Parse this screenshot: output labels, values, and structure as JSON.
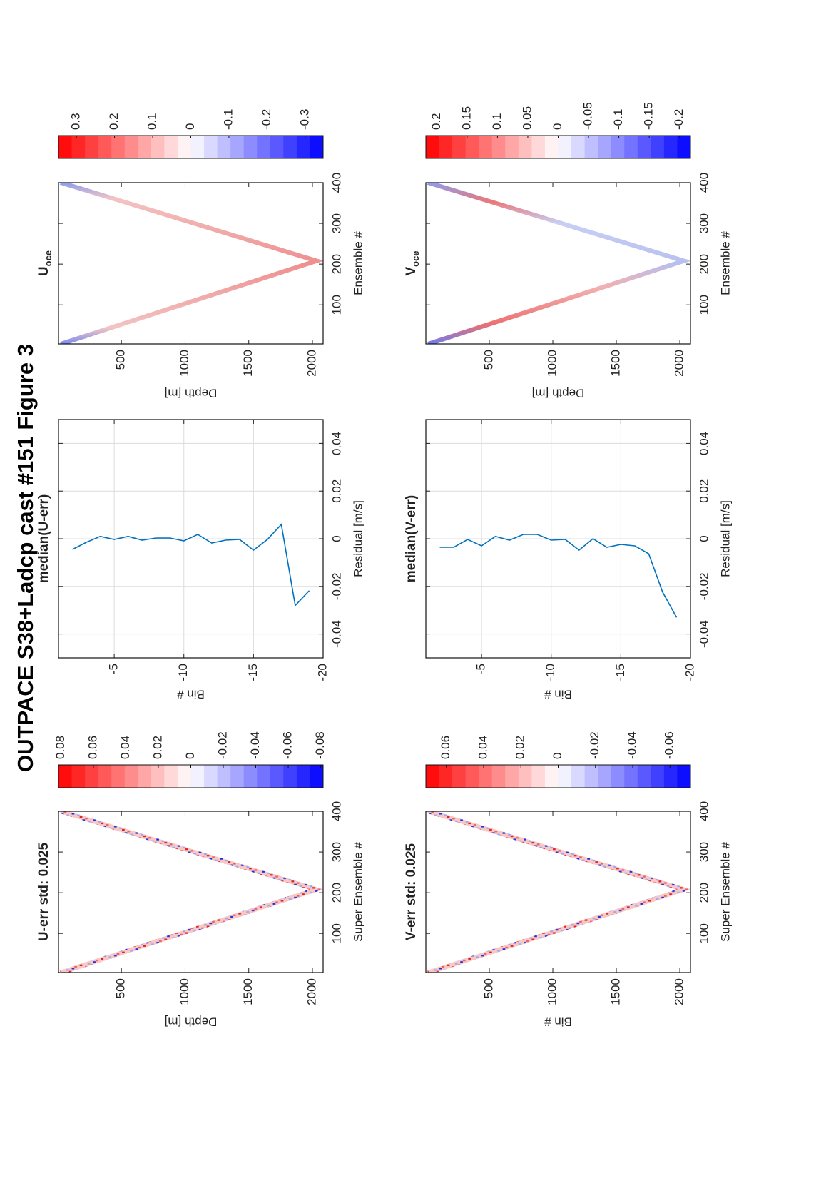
{
  "figure": {
    "title": "OUTPACE S38+Ladcp cast #151  Figure 3"
  },
  "chart_data": [
    {
      "type": "heatmap",
      "title": "U-err std: 0.025",
      "xlabel": "Super Ensemble #",
      "ylabel": "Depth [m]",
      "xlim": [
        4,
        400
      ],
      "xticks": [
        100,
        200,
        300,
        400
      ],
      "ylim": [
        6,
        2084
      ],
      "yticks": [
        500,
        1000,
        1500,
        2000
      ],
      "y_inverted": true,
      "colormap": [
        "#ff0000",
        "#ffffff",
        "#0000ff"
      ],
      "colorbar": {
        "clim": [
          -0.0815,
          0.0815
        ],
        "ticks": [
          0.08,
          0.06,
          0.04,
          0.02,
          0,
          -0.02,
          -0.04,
          -0.06,
          -0.08
        ]
      }
    },
    {
      "type": "line",
      "title": "median(U-err)",
      "xlabel": "Residual [m/s]",
      "ylabel": "Bin #",
      "xlim": [
        -0.05,
        0.05
      ],
      "xticks": [
        -0.04,
        -0.02,
        0,
        0.02,
        0.04
      ],
      "ylim": [
        -20,
        -1
      ],
      "yticks": [
        -20,
        -15,
        -10,
        -5
      ],
      "grid": true,
      "series": [
        {
          "color": "#0072bd",
          "bins": [
            -2,
            -3,
            -4,
            -5,
            -6,
            -7,
            -8,
            -9,
            -10,
            -11,
            -12,
            -13,
            -14,
            -15,
            -16,
            -17,
            -18,
            -19
          ],
          "values": [
            -0.0045,
            -0.0015,
            0.001,
            -0.0003,
            0.001,
            -0.0006,
            0.0003,
            0.0003,
            -0.0009,
            0.0018,
            -0.0018,
            -0.0006,
            -0.0003,
            -0.0048,
            -0.0003,
            0.006,
            -0.028,
            -0.0218
          ]
        }
      ]
    },
    {
      "type": "heatmap",
      "title": {
        "main": "U",
        "sub": "oce"
      },
      "xlabel": "Ensemble #",
      "ylabel": "Depth [m]",
      "xlim": [
        4,
        400
      ],
      "xticks": [
        100,
        200,
        300,
        400
      ],
      "ylim": [
        6,
        2084
      ],
      "yticks": [
        500,
        1000,
        1500,
        2000
      ],
      "y_inverted": true,
      "colormap": [
        "#ff0000",
        "#ffffff",
        "#0000ff"
      ],
      "colorbar": {
        "clim": [
          -0.347,
          0.347
        ],
        "ticks": [
          0.3,
          0.2,
          0.1,
          0,
          -0.1,
          -0.2,
          -0.3
        ]
      }
    },
    {
      "type": "heatmap",
      "title": "V-err std: 0.025",
      "xlabel": "Super Ensemble #",
      "ylabel": "Bin #",
      "xlim": [
        4,
        400
      ],
      "xticks": [
        100,
        200,
        300,
        400
      ],
      "ylim": [
        0,
        2084
      ],
      "yticks": [
        500,
        1000,
        1500,
        2000
      ],
      "y_inverted": true,
      "colormap": [
        "#ff0000",
        "#ffffff",
        "#0000ff"
      ],
      "colorbar": {
        "clim": [
          -0.071,
          0.071
        ],
        "ticks": [
          0.06,
          0.04,
          0.02,
          0,
          -0.02,
          -0.04,
          -0.06
        ]
      }
    },
    {
      "type": "line",
      "title": "median(V-err)",
      "xlabel": "Residual [m/s]",
      "ylabel": "Bin #",
      "xlim": [
        -0.05,
        0.05
      ],
      "xticks": [
        -0.04,
        -0.02,
        0,
        0.02,
        0.04
      ],
      "ylim": [
        -20,
        -1
      ],
      "yticks": [
        -20,
        -15,
        -10,
        -5
      ],
      "grid": true,
      "series": [
        {
          "color": "#0072bd",
          "bins": [
            -2,
            -3,
            -4,
            -5,
            -6,
            -7,
            -8,
            -9,
            -10,
            -11,
            -12,
            -13,
            -14,
            -15,
            -16,
            -17,
            -18,
            -19
          ],
          "values": [
            -0.0036,
            -0.0036,
            -0.0003,
            -0.003,
            0.001,
            -0.0006,
            0.0018,
            0.0018,
            -0.0006,
            -0.0003,
            -0.0048,
            0,
            -0.0036,
            -0.0024,
            -0.003,
            -0.0063,
            -0.0224,
            -0.033
          ]
        }
      ]
    },
    {
      "type": "heatmap",
      "title": {
        "main": "V",
        "sub": "oce"
      },
      "xlabel": "Ensemble #",
      "ylabel": "Depth [m]",
      "xlim": [
        4,
        400
      ],
      "xticks": [
        100,
        200,
        300,
        400
      ],
      "ylim": [
        0,
        2084
      ],
      "yticks": [
        500,
        1000,
        1500,
        2000
      ],
      "y_inverted": true,
      "colormap": [
        "#ff0000",
        "#ffffff",
        "#0000ff"
      ],
      "colorbar": {
        "clim": [
          -0.218,
          0.218
        ],
        "ticks": [
          0.2,
          0.15,
          0.1,
          0.05,
          0,
          -0.05,
          -0.1,
          -0.15,
          -0.2
        ]
      }
    }
  ]
}
